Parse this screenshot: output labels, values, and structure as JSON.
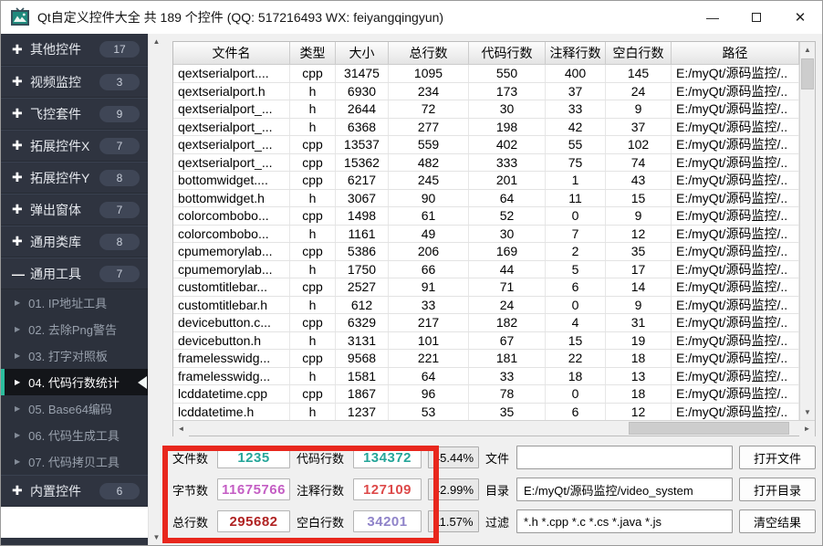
{
  "window": {
    "title": "Qt自定义控件大全 共 189 个控件 (QQ: 517216493 WX: feiyangqingyun)",
    "minimize_glyph": "—",
    "close_glyph": "✕"
  },
  "sidebar": {
    "groups": [
      {
        "label": "其他控件",
        "count": "17",
        "expanded": false
      },
      {
        "label": "视频监控",
        "count": "3",
        "expanded": false
      },
      {
        "label": "飞控套件",
        "count": "9",
        "expanded": false
      },
      {
        "label": "拓展控件X",
        "count": "7",
        "expanded": false
      },
      {
        "label": "拓展控件Y",
        "count": "8",
        "expanded": false
      },
      {
        "label": "弹出窗体",
        "count": "7",
        "expanded": false
      },
      {
        "label": "通用类库",
        "count": "8",
        "expanded": false
      },
      {
        "label": "通用工具",
        "count": "7",
        "expanded": true
      }
    ],
    "tools": [
      {
        "label": "01. IP地址工具",
        "selected": false
      },
      {
        "label": "02. 去除Png警告",
        "selected": false
      },
      {
        "label": "03. 打字对照板",
        "selected": false
      },
      {
        "label": "04. 代码行数统计",
        "selected": true
      },
      {
        "label": "05. Base64编码",
        "selected": false
      },
      {
        "label": "06. 代码生成工具",
        "selected": false
      },
      {
        "label": "07. 代码拷贝工具",
        "selected": false
      }
    ],
    "footer_group": {
      "label": "内置控件",
      "count": "6",
      "expanded": false
    }
  },
  "table": {
    "columns": [
      "文件名",
      "类型",
      "大小",
      "总行数",
      "代码行数",
      "注释行数",
      "空白行数",
      "路径"
    ],
    "rows": [
      [
        "qextserialport....",
        "cpp",
        "31475",
        "1095",
        "550",
        "400",
        "145",
        "E:/myQt/源码监控/.."
      ],
      [
        "qextserialport.h",
        "h",
        "6930",
        "234",
        "173",
        "37",
        "24",
        "E:/myQt/源码监控/.."
      ],
      [
        "qextserialport_...",
        "h",
        "2644",
        "72",
        "30",
        "33",
        "9",
        "E:/myQt/源码监控/.."
      ],
      [
        "qextserialport_...",
        "h",
        "6368",
        "277",
        "198",
        "42",
        "37",
        "E:/myQt/源码监控/.."
      ],
      [
        "qextserialport_...",
        "cpp",
        "13537",
        "559",
        "402",
        "55",
        "102",
        "E:/myQt/源码监控/.."
      ],
      [
        "qextserialport_...",
        "cpp",
        "15362",
        "482",
        "333",
        "75",
        "74",
        "E:/myQt/源码监控/.."
      ],
      [
        "bottomwidget....",
        "cpp",
        "6217",
        "245",
        "201",
        "1",
        "43",
        "E:/myQt/源码监控/.."
      ],
      [
        "bottomwidget.h",
        "h",
        "3067",
        "90",
        "64",
        "11",
        "15",
        "E:/myQt/源码监控/.."
      ],
      [
        "colorcombobo...",
        "cpp",
        "1498",
        "61",
        "52",
        "0",
        "9",
        "E:/myQt/源码监控/.."
      ],
      [
        "colorcombobo...",
        "h",
        "1161",
        "49",
        "30",
        "7",
        "12",
        "E:/myQt/源码监控/.."
      ],
      [
        "cpumemorylab...",
        "cpp",
        "5386",
        "206",
        "169",
        "2",
        "35",
        "E:/myQt/源码监控/.."
      ],
      [
        "cpumemorylab...",
        "h",
        "1750",
        "66",
        "44",
        "5",
        "17",
        "E:/myQt/源码监控/.."
      ],
      [
        "customtitlebar...",
        "cpp",
        "2527",
        "91",
        "71",
        "6",
        "14",
        "E:/myQt/源码监控/.."
      ],
      [
        "customtitlebar.h",
        "h",
        "612",
        "33",
        "24",
        "0",
        "9",
        "E:/myQt/源码监控/.."
      ],
      [
        "devicebutton.c...",
        "cpp",
        "6329",
        "217",
        "182",
        "4",
        "31",
        "E:/myQt/源码监控/.."
      ],
      [
        "devicebutton.h",
        "h",
        "3131",
        "101",
        "67",
        "15",
        "19",
        "E:/myQt/源码监控/.."
      ],
      [
        "framelesswidg...",
        "cpp",
        "9568",
        "221",
        "181",
        "22",
        "18",
        "E:/myQt/源码监控/.."
      ],
      [
        "framelesswidg...",
        "h",
        "1581",
        "64",
        "33",
        "18",
        "13",
        "E:/myQt/源码监控/.."
      ],
      [
        "lcddatetime.cpp",
        "cpp",
        "1867",
        "96",
        "78",
        "0",
        "18",
        "E:/myQt/源码监控/.."
      ],
      [
        "lcddatetime.h",
        "h",
        "1237",
        "53",
        "35",
        "6",
        "12",
        "E:/myQt/源码监控/.."
      ]
    ]
  },
  "stats": {
    "rows": [
      {
        "label1": "文件数",
        "value1": "1235",
        "color1": "#26a69a",
        "label2": "代码行数",
        "value2": "134372",
        "color2": "#26a69a",
        "percent": "45.44%"
      },
      {
        "label1": "字节数",
        "value1": "11675766",
        "color1": "#c45ec4",
        "label2": "注释行数",
        "value2": "127109",
        "color2": "#dd4a4a",
        "percent": "42.99%"
      },
      {
        "label1": "总行数",
        "value1": "295682",
        "color1": "#b02323",
        "label2": "空白行数",
        "value2": "34201",
        "color2": "#8f83c9",
        "percent": "11.57%"
      }
    ]
  },
  "form": {
    "rows": [
      {
        "label": "文件",
        "value": "",
        "button": "打开文件"
      },
      {
        "label": "目录",
        "value": "E:/myQt/源码监控/video_system",
        "button": "打开目录"
      },
      {
        "label": "过滤",
        "value": "*.h *.cpp *.c *.cs *.java *.js",
        "button": "清空结果"
      }
    ]
  }
}
